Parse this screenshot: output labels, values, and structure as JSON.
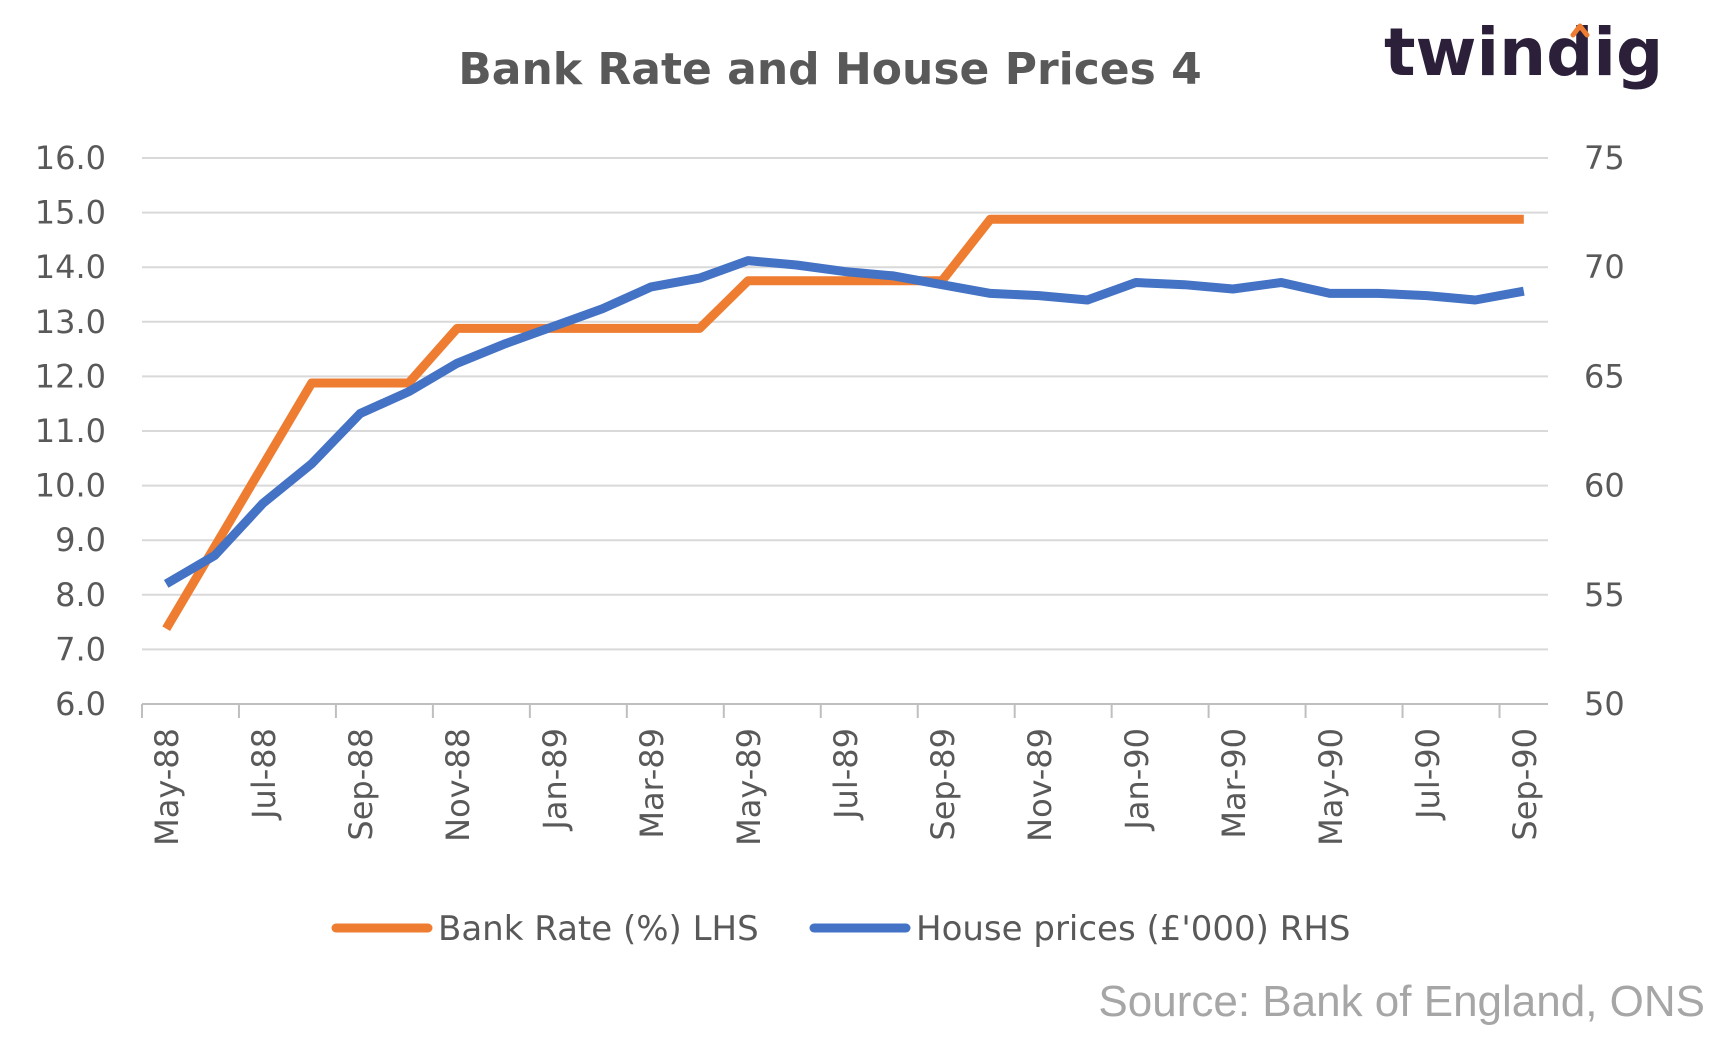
{
  "brand": {
    "logo_text": "twindig",
    "logo_color": "#2b1f3a",
    "logo_accent": "#ee7d31"
  },
  "source": "Source: Bank of England, ONS",
  "chart_data": {
    "type": "line",
    "title": "Bank Rate and House Prices 4",
    "grid": true,
    "legend_position": "bottom",
    "categories": [
      "May-88",
      "Jun-88",
      "Jul-88",
      "Aug-88",
      "Sep-88",
      "Oct-88",
      "Nov-88",
      "Dec-88",
      "Jan-89",
      "Feb-89",
      "Mar-89",
      "Apr-89",
      "May-89",
      "Jun-89",
      "Jul-89",
      "Aug-89",
      "Sep-89",
      "Oct-89",
      "Nov-89",
      "Dec-89",
      "Jan-90",
      "Feb-90",
      "Mar-90",
      "Apr-90",
      "May-90",
      "Jun-90",
      "Jul-90",
      "Aug-90",
      "Sep-90"
    ],
    "x_tick_labels": [
      "May-88",
      "Jul-88",
      "Sep-88",
      "Nov-88",
      "Jan-89",
      "Mar-89",
      "May-89",
      "Jul-89",
      "Sep-89",
      "Nov-89",
      "Jan-90",
      "Mar-90",
      "May-90",
      "Jul-90",
      "Sep-90"
    ],
    "y_left": {
      "range": [
        6.0,
        16.0
      ],
      "ticks": [
        "6.0",
        "7.0",
        "8.0",
        "9.0",
        "10.0",
        "11.0",
        "12.0",
        "13.0",
        "14.0",
        "15.0",
        "16.0"
      ]
    },
    "y_right": {
      "range": [
        50,
        75
      ],
      "ticks": [
        "50",
        "55",
        "60",
        "65",
        "70",
        "75"
      ]
    },
    "series": [
      {
        "name": "Bank Rate (%) LHS",
        "axis": "left",
        "color": "#ee7d31",
        "values": [
          7.38,
          8.88,
          10.38,
          11.88,
          11.88,
          11.88,
          12.88,
          12.88,
          12.88,
          12.88,
          12.88,
          12.88,
          13.75,
          13.75,
          13.75,
          13.75,
          13.75,
          14.88,
          14.88,
          14.88,
          14.88,
          14.88,
          14.88,
          14.88,
          14.88,
          14.88,
          14.88,
          14.88,
          14.88
        ]
      },
      {
        "name": "House prices (£'000) RHS",
        "axis": "right",
        "color": "#4472c4",
        "values": [
          55.5,
          56.8,
          59.2,
          61.0,
          63.3,
          64.3,
          65.6,
          66.5,
          67.3,
          68.1,
          69.1,
          69.5,
          70.3,
          70.1,
          69.8,
          69.6,
          69.2,
          68.8,
          68.7,
          68.5,
          69.3,
          69.2,
          69.0,
          69.3,
          68.8,
          68.8,
          68.7,
          68.5,
          68.9
        ]
      }
    ]
  }
}
